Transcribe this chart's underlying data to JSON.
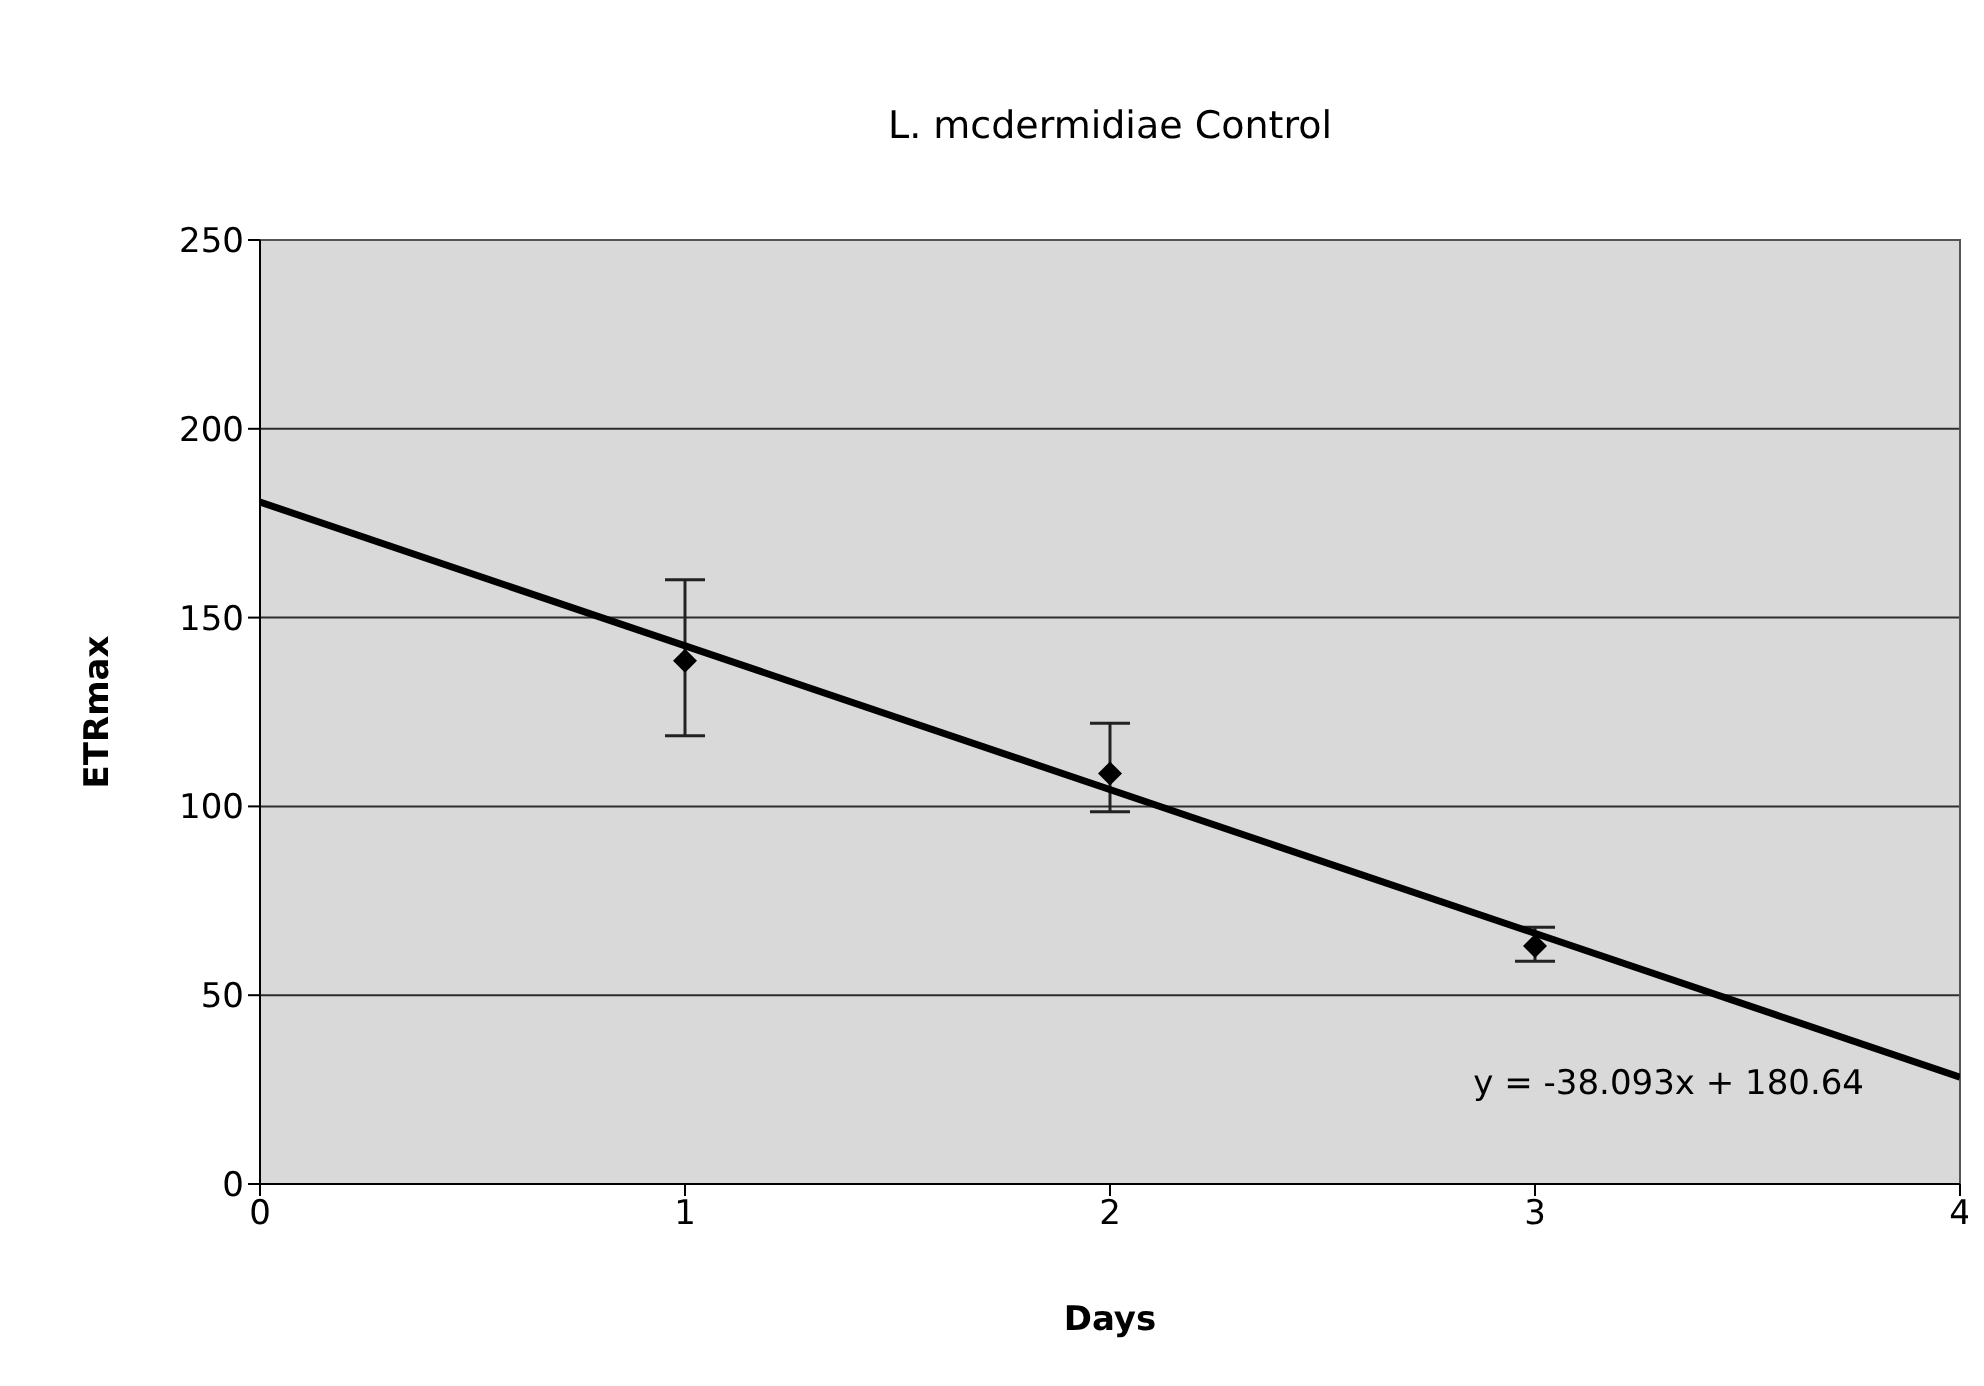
{
  "chart_data": {
    "type": "scatter",
    "title": "L. mcdermidiae Control",
    "xlabel": "Days",
    "ylabel": "ETRmax",
    "series": [
      {
        "color": "#000000",
        "x": [
          1,
          2,
          3
        ],
        "values": [
          138.6,
          108.7,
          63
        ],
        "errors": [
          [
            118.7,
            160
          ],
          [
            98.6,
            122
          ],
          [
            59,
            68
          ]
        ],
        "marker": "diamond"
      },
      {
        "type": "line",
        "color": "#000000",
        "x": [
          0,
          4
        ],
        "values": [
          180.6,
          28.3
        ],
        "marker": "none"
      }
    ],
    "xlim": [
      0,
      4
    ],
    "xticks": [
      0,
      1,
      2,
      3,
      4
    ],
    "ylim": [
      0,
      250
    ],
    "yticks": [
      0,
      50,
      100,
      150,
      200,
      250
    ],
    "grid": "y",
    "annotations": [
      "y = -38.093x + 180.64"
    ]
  }
}
